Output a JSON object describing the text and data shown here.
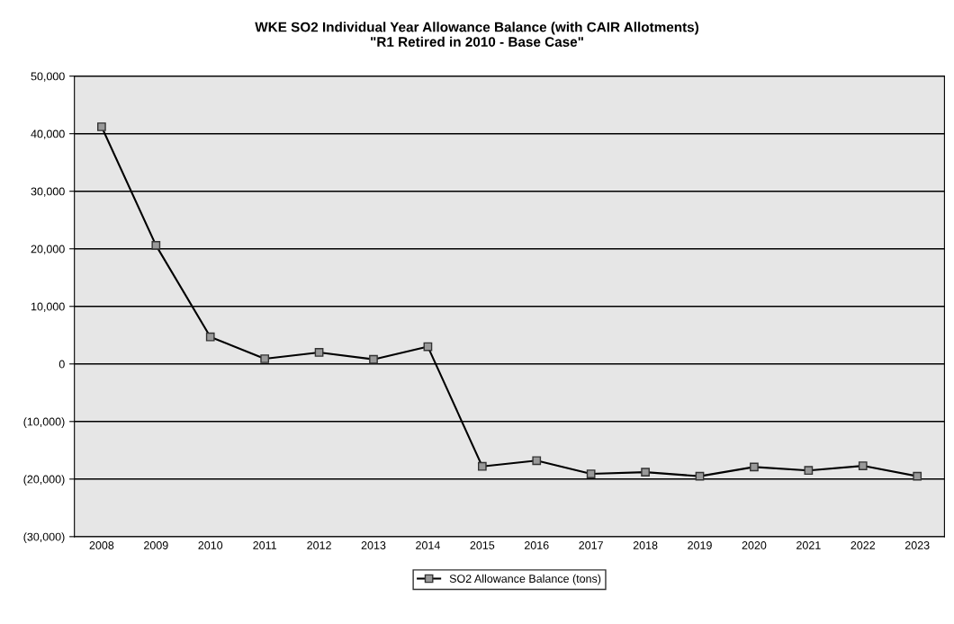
{
  "chart_data": {
    "type": "line",
    "title": "WKE SO2 Individual Year Allowance Balance (with CAIR Allotments)\n\"R1 Retired in 2010 - Base Case\"",
    "categories": [
      "2008",
      "2009",
      "2010",
      "2011",
      "2012",
      "2013",
      "2014",
      "2015",
      "2016",
      "2017",
      "2018",
      "2019",
      "2020",
      "2021",
      "2022",
      "2023"
    ],
    "series": [
      {
        "name": "SO2 Allowance Balance (tons)",
        "color": "#000000",
        "values": [
          41200,
          20600,
          4700,
          900,
          2000,
          800,
          3000,
          -17800,
          -16800,
          -19100,
          -18800,
          -19500,
          -17900,
          -18500,
          -17700,
          -19500
        ]
      }
    ],
    "ylim": [
      -30000,
      50000
    ],
    "yticks": [
      {
        "value": -30000,
        "label": "(30,000)"
      },
      {
        "value": -20000,
        "label": "(20,000)"
      },
      {
        "value": -10000,
        "label": "(10,000)"
      },
      {
        "value": 0,
        "label": "0"
      },
      {
        "value": 10000,
        "label": "10,000"
      },
      {
        "value": 20000,
        "label": "20,000"
      },
      {
        "value": 30000,
        "label": "30,000"
      },
      {
        "value": 40000,
        "label": "40,000"
      },
      {
        "value": 50000,
        "label": "50,000"
      }
    ],
    "grid": "y",
    "legend": "bottom",
    "marker": "square",
    "line_style": "solid"
  }
}
